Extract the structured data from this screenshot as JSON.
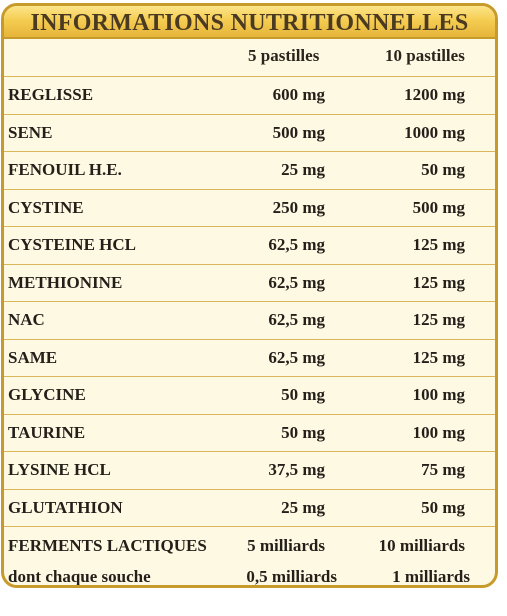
{
  "title": "INFORMATIONS NUTRITIONNELLES",
  "columns": [
    "5 pastilles",
    "10 pastilles"
  ],
  "rows": [
    {
      "name": "REGLISSE",
      "v1": "600 mg",
      "v2": "1200 mg"
    },
    {
      "name": "SENE",
      "v1": "500 mg",
      "v2": "1000 mg"
    },
    {
      "name": "FENOUIL H.E.",
      "v1": "25 mg",
      "v2": "50 mg"
    },
    {
      "name": "CYSTINE",
      "v1": "250 mg",
      "v2": "500 mg"
    },
    {
      "name": "CYSTEINE HCL",
      "v1": "62,5 mg",
      "v2": "125 mg"
    },
    {
      "name": "METHIONINE",
      "v1": "62,5 mg",
      "v2": "125 mg"
    },
    {
      "name": "NAC",
      "v1": "62,5 mg",
      "v2": "125 mg"
    },
    {
      "name": "SAME",
      "v1": "62,5 mg",
      "v2": "125 mg"
    },
    {
      "name": "GLYCINE",
      "v1": "50 mg",
      "v2": "100 mg"
    },
    {
      "name": "TAURINE",
      "v1": "50 mg",
      "v2": "100 mg"
    },
    {
      "name": "LYSINE HCL",
      "v1": "37,5 mg",
      "v2": "75 mg"
    },
    {
      "name": "GLUTATHION",
      "v1": "25 mg",
      "v2": "50 mg"
    }
  ],
  "ferments": {
    "name": "FERMENTS LACTIQUES",
    "v1": "5 milliards",
    "v2": "10 milliards",
    "sub_name": "dont chaque souche",
    "sub_v1": "0,5 milliards",
    "sub_v2": "1 milliards"
  },
  "colors": {
    "border": "#c79a2c",
    "panel_bg": "#fdf9e3",
    "header_gold": "#f5cd52",
    "text": "#241f19"
  }
}
